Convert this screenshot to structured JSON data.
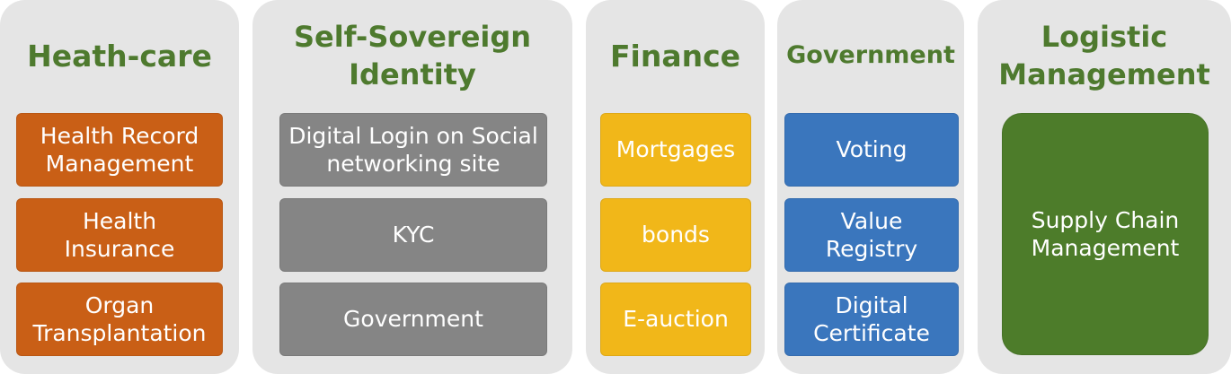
{
  "colors": {
    "panel": "#e5e5e5",
    "title": "#4e7a2e",
    "healthcare": "#c95f16",
    "identity": "#858585",
    "finance": "#f1b719",
    "government": "#3a76bd",
    "logistic": "#4d7c2a"
  },
  "columns": [
    {
      "title": "Heath-care",
      "items": [
        "Health Record\nManagement",
        "Health\nInsurance",
        "Organ\nTransplantation"
      ]
    },
    {
      "title": "Self-Sovereign\nIdentity",
      "items": [
        "Digital Login on Social\nnetworking site",
        "KYC",
        "Government"
      ]
    },
    {
      "title": "Finance",
      "items": [
        "Mortgages",
        "bonds",
        "E-auction"
      ]
    },
    {
      "title": "Government",
      "items": [
        "Voting",
        "Value\nRegistry",
        "Digital\nCertificate"
      ]
    },
    {
      "title": "Logistic\nManagement",
      "items": [
        "Supply Chain\nManagement"
      ]
    }
  ]
}
